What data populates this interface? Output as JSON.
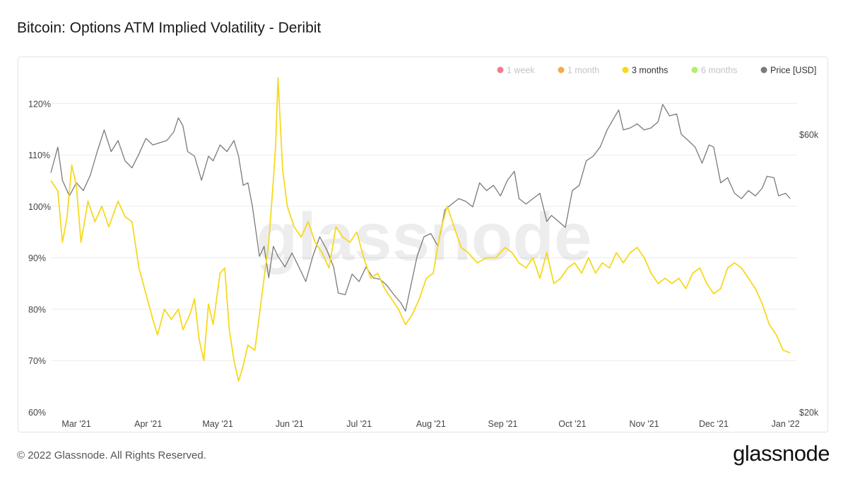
{
  "header": {
    "title": "Bitcoin: Options ATM Implied Volatility - Deribit"
  },
  "footer": {
    "copyright": "© 2022 Glassnode. All Rights Reserved.",
    "brand": "glassnode"
  },
  "watermark": "glassnode",
  "colors": {
    "three_months": "#f7d91e",
    "price": "#7a7a7a",
    "grid": "#ececec",
    "one_week": "#f37b8c",
    "one_month": "#f8a94a",
    "six_months": "#b5ef6b"
  },
  "chart_data": {
    "type": "line",
    "title": "Bitcoin: Options ATM Implied Volatility - Deribit",
    "x_ticks": [
      "Mar '21",
      "Apr '21",
      "May '21",
      "Jun '21",
      "Jul '21",
      "Aug '21",
      "Sep '21",
      "Oct '21",
      "Nov '21",
      "Dec '21",
      "Jan '22"
    ],
    "x_tick_dates": [
      "2021-03-01",
      "2021-04-01",
      "2021-05-01",
      "2021-06-01",
      "2021-07-01",
      "2021-08-01",
      "2021-09-01",
      "2021-10-01",
      "2021-11-01",
      "2021-12-01",
      "2022-01-01"
    ],
    "xlim": [
      "2021-02-18",
      "2022-01-06"
    ],
    "y_left": {
      "ticks": [
        "60%",
        "70%",
        "80%",
        "90%",
        "100%",
        "110%",
        "120%"
      ],
      "ylim": [
        60,
        125
      ]
    },
    "y_right": {
      "ticks": [
        "$20k",
        "$60k"
      ],
      "scale": "log",
      "ylim": [
        20000,
        75000
      ]
    },
    "grid": true,
    "legend_position": "top-right",
    "legend": [
      {
        "label": "1 week",
        "active": false,
        "color": "#f37b8c"
      },
      {
        "label": "1 month",
        "active": false,
        "color": "#f8a94a"
      },
      {
        "label": "3 months",
        "active": true,
        "color": "#f7d91e"
      },
      {
        "label": "6 months",
        "active": false,
        "color": "#b5ef6b"
      },
      {
        "label": "Price [USD]",
        "active": true,
        "color": "#7a7a7a"
      }
    ],
    "series": [
      {
        "name": "3 months",
        "axis": "left",
        "unit": "%",
        "points": [
          [
            "2021-02-18",
            105
          ],
          [
            "2021-02-21",
            103
          ],
          [
            "2021-02-23",
            93
          ],
          [
            "2021-02-25",
            98
          ],
          [
            "2021-02-27",
            108
          ],
          [
            "2021-03-01",
            104
          ],
          [
            "2021-03-03",
            93
          ],
          [
            "2021-03-06",
            101
          ],
          [
            "2021-03-09",
            97
          ],
          [
            "2021-03-12",
            100
          ],
          [
            "2021-03-15",
            96
          ],
          [
            "2021-03-19",
            101
          ],
          [
            "2021-03-22",
            98
          ],
          [
            "2021-03-25",
            97
          ],
          [
            "2021-03-28",
            88
          ],
          [
            "2021-03-31",
            83
          ],
          [
            "2021-04-03",
            78
          ],
          [
            "2021-04-05",
            75
          ],
          [
            "2021-04-08",
            80
          ],
          [
            "2021-04-11",
            78
          ],
          [
            "2021-04-14",
            80
          ],
          [
            "2021-04-16",
            76
          ],
          [
            "2021-04-19",
            79
          ],
          [
            "2021-04-21",
            82
          ],
          [
            "2021-04-23",
            74
          ],
          [
            "2021-04-25",
            70
          ],
          [
            "2021-04-27",
            81
          ],
          [
            "2021-04-29",
            77
          ],
          [
            "2021-05-02",
            87
          ],
          [
            "2021-05-04",
            88
          ],
          [
            "2021-05-06",
            76
          ],
          [
            "2021-05-08",
            70
          ],
          [
            "2021-05-10",
            66
          ],
          [
            "2021-05-12",
            69
          ],
          [
            "2021-05-14",
            73
          ],
          [
            "2021-05-17",
            72
          ],
          [
            "2021-05-19",
            79
          ],
          [
            "2021-05-21",
            86
          ],
          [
            "2021-05-23",
            93
          ],
          [
            "2021-05-25",
            105
          ],
          [
            "2021-05-26",
            112
          ],
          [
            "2021-05-27",
            125
          ],
          [
            "2021-05-29",
            107
          ],
          [
            "2021-05-31",
            100
          ],
          [
            "2021-06-03",
            96
          ],
          [
            "2021-06-06",
            94
          ],
          [
            "2021-06-09",
            97
          ],
          [
            "2021-06-12",
            93
          ],
          [
            "2021-06-15",
            91
          ],
          [
            "2021-06-18",
            88
          ],
          [
            "2021-06-21",
            96
          ],
          [
            "2021-06-24",
            94
          ],
          [
            "2021-06-27",
            93
          ],
          [
            "2021-06-30",
            95
          ],
          [
            "2021-07-03",
            90
          ],
          [
            "2021-07-06",
            86
          ],
          [
            "2021-07-09",
            87
          ],
          [
            "2021-07-12",
            84
          ],
          [
            "2021-07-15",
            82
          ],
          [
            "2021-07-18",
            80
          ],
          [
            "2021-07-21",
            77
          ],
          [
            "2021-07-24",
            79
          ],
          [
            "2021-07-27",
            82
          ],
          [
            "2021-07-30",
            86
          ],
          [
            "2021-08-02",
            87
          ],
          [
            "2021-08-05",
            95
          ],
          [
            "2021-08-08",
            100
          ],
          [
            "2021-08-11",
            96
          ],
          [
            "2021-08-14",
            92
          ],
          [
            "2021-08-17",
            91
          ],
          [
            "2021-08-21",
            89
          ],
          [
            "2021-08-25",
            90
          ],
          [
            "2021-08-29",
            90
          ],
          [
            "2021-09-02",
            92
          ],
          [
            "2021-09-05",
            91
          ],
          [
            "2021-09-08",
            89
          ],
          [
            "2021-09-11",
            88
          ],
          [
            "2021-09-14",
            90
          ],
          [
            "2021-09-17",
            86
          ],
          [
            "2021-09-20",
            91
          ],
          [
            "2021-09-23",
            85
          ],
          [
            "2021-09-26",
            86
          ],
          [
            "2021-09-29",
            88
          ],
          [
            "2021-10-02",
            89
          ],
          [
            "2021-10-05",
            87
          ],
          [
            "2021-10-08",
            90
          ],
          [
            "2021-10-11",
            87
          ],
          [
            "2021-10-14",
            89
          ],
          [
            "2021-10-17",
            88
          ],
          [
            "2021-10-20",
            91
          ],
          [
            "2021-10-23",
            89
          ],
          [
            "2021-10-26",
            91
          ],
          [
            "2021-10-29",
            92
          ],
          [
            "2021-11-01",
            90
          ],
          [
            "2021-11-04",
            87
          ],
          [
            "2021-11-07",
            85
          ],
          [
            "2021-11-10",
            86
          ],
          [
            "2021-11-13",
            85
          ],
          [
            "2021-11-16",
            86
          ],
          [
            "2021-11-19",
            84
          ],
          [
            "2021-11-22",
            87
          ],
          [
            "2021-11-25",
            88
          ],
          [
            "2021-11-28",
            85
          ],
          [
            "2021-12-01",
            83
          ],
          [
            "2021-12-04",
            84
          ],
          [
            "2021-12-07",
            88
          ],
          [
            "2021-12-10",
            89
          ],
          [
            "2021-12-13",
            88
          ],
          [
            "2021-12-16",
            86
          ],
          [
            "2021-12-19",
            84
          ],
          [
            "2021-12-22",
            81
          ],
          [
            "2021-12-25",
            77
          ],
          [
            "2021-12-28",
            75
          ],
          [
            "2021-12-31",
            72
          ],
          [
            "2022-01-03",
            71.5
          ]
        ]
      },
      {
        "name": "Price [USD]",
        "axis": "right",
        "unit": "USD",
        "points": [
          [
            "2021-02-18",
            51500
          ],
          [
            "2021-02-21",
            57000
          ],
          [
            "2021-02-23",
            50000
          ],
          [
            "2021-02-26",
            47000
          ],
          [
            "2021-03-01",
            49500
          ],
          [
            "2021-03-04",
            48000
          ],
          [
            "2021-03-07",
            51000
          ],
          [
            "2021-03-10",
            56000
          ],
          [
            "2021-03-13",
            61000
          ],
          [
            "2021-03-16",
            56000
          ],
          [
            "2021-03-19",
            58500
          ],
          [
            "2021-03-22",
            54000
          ],
          [
            "2021-03-25",
            52500
          ],
          [
            "2021-03-28",
            55500
          ],
          [
            "2021-03-31",
            59000
          ],
          [
            "2021-04-03",
            57500
          ],
          [
            "2021-04-06",
            58000
          ],
          [
            "2021-04-09",
            58500
          ],
          [
            "2021-04-12",
            60500
          ],
          [
            "2021-04-14",
            64000
          ],
          [
            "2021-04-16",
            62000
          ],
          [
            "2021-04-18",
            56000
          ],
          [
            "2021-04-21",
            55000
          ],
          [
            "2021-04-24",
            50000
          ],
          [
            "2021-04-27",
            55000
          ],
          [
            "2021-04-29",
            54000
          ],
          [
            "2021-05-02",
            57500
          ],
          [
            "2021-05-05",
            56000
          ],
          [
            "2021-05-08",
            58500
          ],
          [
            "2021-05-10",
            55000
          ],
          [
            "2021-05-12",
            49000
          ],
          [
            "2021-05-14",
            49500
          ],
          [
            "2021-05-16",
            45000
          ],
          [
            "2021-05-19",
            37000
          ],
          [
            "2021-05-21",
            38500
          ],
          [
            "2021-05-23",
            34000
          ],
          [
            "2021-05-25",
            38500
          ],
          [
            "2021-05-27",
            37000
          ],
          [
            "2021-05-30",
            35500
          ],
          [
            "2021-06-02",
            37500
          ],
          [
            "2021-06-05",
            35500
          ],
          [
            "2021-06-08",
            33500
          ],
          [
            "2021-06-11",
            37000
          ],
          [
            "2021-06-14",
            40000
          ],
          [
            "2021-06-17",
            38000
          ],
          [
            "2021-06-20",
            35500
          ],
          [
            "2021-06-22",
            32000
          ],
          [
            "2021-06-25",
            31800
          ],
          [
            "2021-06-28",
            34500
          ],
          [
            "2021-07-01",
            33500
          ],
          [
            "2021-07-04",
            35500
          ],
          [
            "2021-07-07",
            34000
          ],
          [
            "2021-07-10",
            33800
          ],
          [
            "2021-07-13",
            33000
          ],
          [
            "2021-07-16",
            31800
          ],
          [
            "2021-07-19",
            30800
          ],
          [
            "2021-07-21",
            29800
          ],
          [
            "2021-07-23",
            32500
          ],
          [
            "2021-07-26",
            37000
          ],
          [
            "2021-07-29",
            40000
          ],
          [
            "2021-08-01",
            40500
          ],
          [
            "2021-08-04",
            38500
          ],
          [
            "2021-08-07",
            44500
          ],
          [
            "2021-08-10",
            45500
          ],
          [
            "2021-08-13",
            46500
          ],
          [
            "2021-08-16",
            46000
          ],
          [
            "2021-08-19",
            45000
          ],
          [
            "2021-08-22",
            49500
          ],
          [
            "2021-08-25",
            48000
          ],
          [
            "2021-08-28",
            49000
          ],
          [
            "2021-08-31",
            47000
          ],
          [
            "2021-09-03",
            50000
          ],
          [
            "2021-09-06",
            51800
          ],
          [
            "2021-09-08",
            46500
          ],
          [
            "2021-09-11",
            45500
          ],
          [
            "2021-09-14",
            46500
          ],
          [
            "2021-09-17",
            47500
          ],
          [
            "2021-09-20",
            42500
          ],
          [
            "2021-09-22",
            43500
          ],
          [
            "2021-09-25",
            42500
          ],
          [
            "2021-09-28",
            41500
          ],
          [
            "2021-10-01",
            48000
          ],
          [
            "2021-10-04",
            49000
          ],
          [
            "2021-10-07",
            54000
          ],
          [
            "2021-10-10",
            55000
          ],
          [
            "2021-10-13",
            57000
          ],
          [
            "2021-10-16",
            61000
          ],
          [
            "2021-10-19",
            64000
          ],
          [
            "2021-10-21",
            66000
          ],
          [
            "2021-10-23",
            61000
          ],
          [
            "2021-10-26",
            61500
          ],
          [
            "2021-10-29",
            62500
          ],
          [
            "2021-11-01",
            61000
          ],
          [
            "2021-11-04",
            61500
          ],
          [
            "2021-11-07",
            63000
          ],
          [
            "2021-11-09",
            67500
          ],
          [
            "2021-11-12",
            64500
          ],
          [
            "2021-11-15",
            65000
          ],
          [
            "2021-11-17",
            60000
          ],
          [
            "2021-11-20",
            58500
          ],
          [
            "2021-11-23",
            57000
          ],
          [
            "2021-11-26",
            53500
          ],
          [
            "2021-11-29",
            57500
          ],
          [
            "2021-12-01",
            57000
          ],
          [
            "2021-12-04",
            49500
          ],
          [
            "2021-12-07",
            50500
          ],
          [
            "2021-12-10",
            47500
          ],
          [
            "2021-12-13",
            46500
          ],
          [
            "2021-12-16",
            48000
          ],
          [
            "2021-12-19",
            47000
          ],
          [
            "2021-12-22",
            48500
          ],
          [
            "2021-12-24",
            50800
          ],
          [
            "2021-12-27",
            50500
          ],
          [
            "2021-12-29",
            47000
          ],
          [
            "2022-01-01",
            47500
          ],
          [
            "2022-01-03",
            46500
          ]
        ]
      }
    ]
  }
}
